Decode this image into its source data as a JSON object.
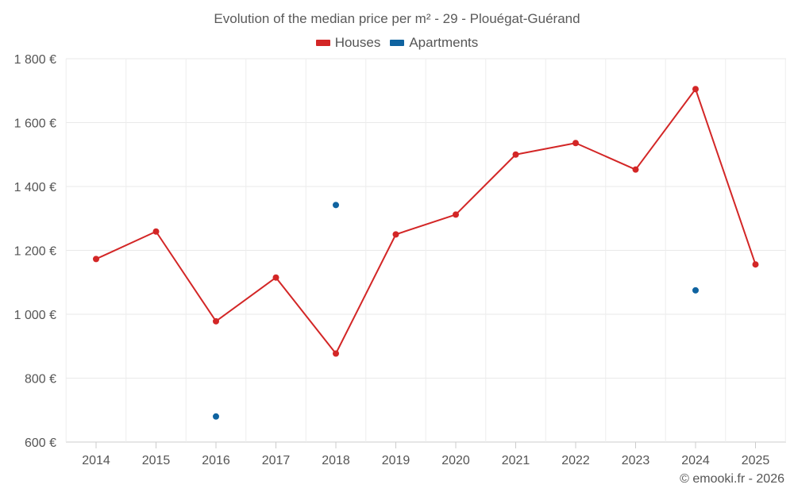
{
  "chart_data": {
    "type": "line",
    "title": "Evolution of the median price per m² - 29 - Plouégat-Guérand",
    "categories": [
      "2014",
      "2015",
      "2016",
      "2017",
      "2018",
      "2019",
      "2020",
      "2021",
      "2022",
      "2023",
      "2024",
      "2025"
    ],
    "ylim": [
      600,
      1800
    ],
    "yticks": [
      600,
      800,
      1000,
      1200,
      1400,
      1600,
      1800
    ],
    "ytick_labels": [
      "600 €",
      "800 €",
      "1 000 €",
      "1 200 €",
      "1 400 €",
      "1 600 €",
      "1 800 €"
    ],
    "grid": true,
    "legend_position": "top-center",
    "series": [
      {
        "name": "Houses",
        "color": "#d32626",
        "values": [
          1173,
          1259,
          978,
          1115,
          877,
          1250,
          1312,
          1500,
          1536,
          1453,
          1705,
          1156
        ]
      },
      {
        "name": "Apartments",
        "color": "#0f63a0",
        "values": [
          null,
          null,
          680,
          null,
          1342,
          null,
          null,
          null,
          null,
          null,
          1075,
          null
        ]
      }
    ]
  },
  "credit": "© emooki.fr - 2026"
}
